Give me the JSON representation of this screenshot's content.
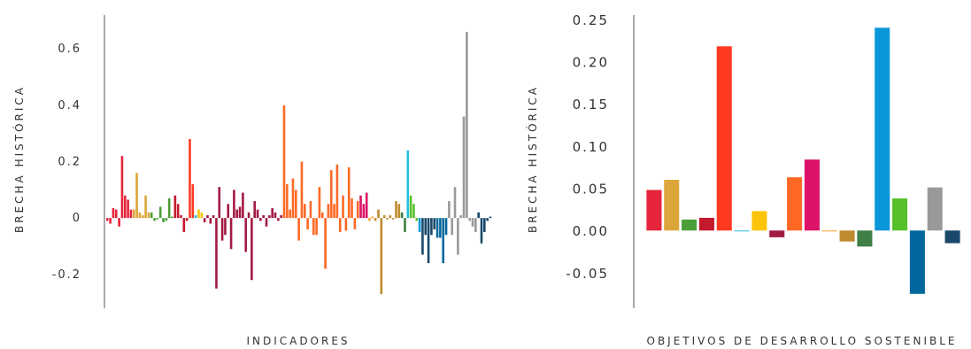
{
  "chart_data": [
    {
      "type": "bar",
      "xlabel": "INDICADORES",
      "ylabel": "BRECHA HISTÓRICA",
      "ylim": [
        -0.32,
        0.72
      ],
      "yticks": [
        -0.2,
        0,
        0.2,
        0.4,
        0.6
      ],
      "ytick_labels": [
        "-0.2",
        "0",
        "0.2",
        "0.4",
        "0.6"
      ],
      "grid": false,
      "values": [
        {
          "v": -0.01,
          "c": "#e5243b"
        },
        {
          "v": -0.02,
          "c": "#e5243b"
        },
        {
          "v": 0.035,
          "c": "#e5243b"
        },
        {
          "v": 0.03,
          "c": "#e5243b"
        },
        {
          "v": -0.03,
          "c": "#e5243b"
        },
        {
          "v": 0.22,
          "c": "#e5243b"
        },
        {
          "v": 0.08,
          "c": "#e5243b"
        },
        {
          "v": 0.065,
          "c": "#e5243b"
        },
        {
          "v": 0.03,
          "c": "#e5243b"
        },
        {
          "v": 0.03,
          "c": "#dda63a"
        },
        {
          "v": 0.16,
          "c": "#dda63a"
        },
        {
          "v": 0.02,
          "c": "#dda63a"
        },
        {
          "v": 0.01,
          "c": "#dda63a"
        },
        {
          "v": 0.08,
          "c": "#dda63a"
        },
        {
          "v": 0.02,
          "c": "#dda63a"
        },
        {
          "v": 0.02,
          "c": "#4c9f38"
        },
        {
          "v": -0.01,
          "c": "#4c9f38"
        },
        {
          "v": -0.005,
          "c": "#4c9f38"
        },
        {
          "v": 0.04,
          "c": "#4c9f38"
        },
        {
          "v": -0.015,
          "c": "#4c9f38"
        },
        {
          "v": -0.01,
          "c": "#4c9f38"
        },
        {
          "v": 0.07,
          "c": "#4c9f38"
        },
        {
          "v": 0.005,
          "c": "#4c9f38"
        },
        {
          "v": 0.08,
          "c": "#c5192d"
        },
        {
          "v": 0.05,
          "c": "#c5192d"
        },
        {
          "v": 0.01,
          "c": "#c5192d"
        },
        {
          "v": -0.05,
          "c": "#c5192d"
        },
        {
          "v": -0.01,
          "c": "#c5192d"
        },
        {
          "v": 0.28,
          "c": "#ff3a21"
        },
        {
          "v": 0.12,
          "c": "#ff3a21"
        },
        {
          "v": 0.01,
          "c": "#26bde2"
        },
        {
          "v": 0.03,
          "c": "#fcc30b"
        },
        {
          "v": 0.02,
          "c": "#fcc30b"
        },
        {
          "v": -0.015,
          "c": "#a21942"
        },
        {
          "v": 0.01,
          "c": "#a21942"
        },
        {
          "v": -0.02,
          "c": "#a21942"
        },
        {
          "v": 0.01,
          "c": "#a21942"
        },
        {
          "v": -0.25,
          "c": "#a21942"
        },
        {
          "v": 0.11,
          "c": "#a21942"
        },
        {
          "v": -0.08,
          "c": "#a21942"
        },
        {
          "v": -0.06,
          "c": "#a21942"
        },
        {
          "v": 0.05,
          "c": "#a21942"
        },
        {
          "v": -0.11,
          "c": "#a21942"
        },
        {
          "v": 0.1,
          "c": "#a21942"
        },
        {
          "v": 0.03,
          "c": "#a21942"
        },
        {
          "v": 0.04,
          "c": "#a21942"
        },
        {
          "v": 0.09,
          "c": "#a21942"
        },
        {
          "v": -0.12,
          "c": "#a21942"
        },
        {
          "v": 0.02,
          "c": "#a21942"
        },
        {
          "v": -0.22,
          "c": "#a21942"
        },
        {
          "v": 0.06,
          "c": "#a21942"
        },
        {
          "v": 0.03,
          "c": "#a21942"
        },
        {
          "v": -0.01,
          "c": "#a21942"
        },
        {
          "v": 0.01,
          "c": "#a21942"
        },
        {
          "v": -0.03,
          "c": "#a21942"
        },
        {
          "v": 0.01,
          "c": "#a21942"
        },
        {
          "v": 0.035,
          "c": "#a21942"
        },
        {
          "v": 0.02,
          "c": "#a21942"
        },
        {
          "v": -0.01,
          "c": "#a21942"
        },
        {
          "v": 0.01,
          "c": "#a21942"
        },
        {
          "v": 0.4,
          "c": "#fd6925"
        },
        {
          "v": 0.12,
          "c": "#fd6925"
        },
        {
          "v": 0.03,
          "c": "#fd6925"
        },
        {
          "v": 0.14,
          "c": "#fd6925"
        },
        {
          "v": 0.1,
          "c": "#fd6925"
        },
        {
          "v": -0.08,
          "c": "#fd6925"
        },
        {
          "v": 0.2,
          "c": "#fd6925"
        },
        {
          "v": 0.05,
          "c": "#fd6925"
        },
        {
          "v": -0.04,
          "c": "#fd6925"
        },
        {
          "v": 0.06,
          "c": "#fd6925"
        },
        {
          "v": -0.06,
          "c": "#fd6925"
        },
        {
          "v": -0.06,
          "c": "#fd6925"
        },
        {
          "v": 0.11,
          "c": "#fd6925"
        },
        {
          "v": 0.02,
          "c": "#fd6925"
        },
        {
          "v": -0.18,
          "c": "#fd6925"
        },
        {
          "v": 0.05,
          "c": "#fd6925"
        },
        {
          "v": 0.17,
          "c": "#fd6925"
        },
        {
          "v": 0.05,
          "c": "#fd6925"
        },
        {
          "v": 0.19,
          "c": "#fd6925"
        },
        {
          "v": -0.05,
          "c": "#fd6925"
        },
        {
          "v": 0.08,
          "c": "#fd6925"
        },
        {
          "v": -0.045,
          "c": "#fd6925"
        },
        {
          "v": 0.18,
          "c": "#fd6925"
        },
        {
          "v": 0.07,
          "c": "#fd6925"
        },
        {
          "v": -0.04,
          "c": "#fd6925"
        },
        {
          "v": 0.06,
          "c": "#fd6925"
        },
        {
          "v": 0.08,
          "c": "#dd1367"
        },
        {
          "v": 0.05,
          "c": "#dd1367"
        },
        {
          "v": 0.09,
          "c": "#dd1367"
        },
        {
          "v": -0.01,
          "c": "#fd9d24"
        },
        {
          "v": 0.005,
          "c": "#fd9d24"
        },
        {
          "v": -0.01,
          "c": "#bf8b2e"
        },
        {
          "v": 0.03,
          "c": "#bf8b2e"
        },
        {
          "v": -0.27,
          "c": "#bf8b2e"
        },
        {
          "v": 0.01,
          "c": "#bf8b2e"
        },
        {
          "v": -0.005,
          "c": "#bf8b2e"
        },
        {
          "v": 0.01,
          "c": "#bf8b2e"
        },
        {
          "v": -0.005,
          "c": "#bf8b2e"
        },
        {
          "v": 0.06,
          "c": "#bf8b2e"
        },
        {
          "v": 0.05,
          "c": "#bf8b2e"
        },
        {
          "v": 0.02,
          "c": "#3f7e44"
        },
        {
          "v": -0.05,
          "c": "#3f7e44"
        },
        {
          "v": 0.24,
          "c": "#26bde2"
        },
        {
          "v": 0.08,
          "c": "#56c02b"
        },
        {
          "v": 0.05,
          "c": "#56c02b"
        },
        {
          "v": -0.01,
          "c": "#56c02b"
        },
        {
          "v": -0.05,
          "c": "#0a97d9"
        },
        {
          "v": -0.13,
          "c": "#19486a"
        },
        {
          "v": -0.06,
          "c": "#19486a"
        },
        {
          "v": -0.16,
          "c": "#19486a"
        },
        {
          "v": -0.06,
          "c": "#19486a"
        },
        {
          "v": -0.04,
          "c": "#19486a"
        },
        {
          "v": -0.07,
          "c": "#00689d"
        },
        {
          "v": -0.07,
          "c": "#00689d"
        },
        {
          "v": -0.16,
          "c": "#00689d"
        },
        {
          "v": -0.06,
          "c": "#00689d"
        },
        {
          "v": 0.06,
          "c": "#999999"
        },
        {
          "v": -0.06,
          "c": "#999999"
        },
        {
          "v": 0.11,
          "c": "#999999"
        },
        {
          "v": -0.13,
          "c": "#999999"
        },
        {
          "v": 0.01,
          "c": "#999999"
        },
        {
          "v": 0.36,
          "c": "#999999"
        },
        {
          "v": 0.66,
          "c": "#999999"
        },
        {
          "v": -0.01,
          "c": "#999999"
        },
        {
          "v": -0.03,
          "c": "#999999"
        },
        {
          "v": -0.05,
          "c": "#999999"
        },
        {
          "v": 0.02,
          "c": "#19486a"
        },
        {
          "v": -0.09,
          "c": "#19486a"
        },
        {
          "v": -0.05,
          "c": "#19486a"
        },
        {
          "v": -0.01,
          "c": "#19486a"
        },
        {
          "v": 0.005,
          "c": "#19486a"
        }
      ]
    },
    {
      "type": "bar",
      "xlabel": "OBJETIVOS DE DESARROLLO SOSTENIBLE",
      "ylabel": "BRECHA HISTÓRICA",
      "ylim": [
        -0.092,
        0.255
      ],
      "yticks": [
        -0.05,
        0.0,
        0.05,
        0.1,
        0.15,
        0.2,
        0.25
      ],
      "ytick_labels": [
        "-0.05",
        "0.00",
        "0.05",
        "0.10",
        "0.15",
        "0.20",
        "0.25"
      ],
      "grid": false,
      "values": [
        0.048,
        0.06,
        0.013,
        0.015,
        0.218,
        -0.001,
        0.023,
        -0.008,
        0.063,
        0.084,
        -0.001,
        -0.013,
        -0.019,
        0.24,
        0.038,
        -0.075,
        0.051,
        -0.015
      ],
      "colors": [
        "#e5243b",
        "#dda63a",
        "#4c9f38",
        "#c5192d",
        "#ff3a21",
        "#26bde2",
        "#fcc30b",
        "#a21942",
        "#fd6925",
        "#dd1367",
        "#fd9d24",
        "#bf8b2e",
        "#3f7e44",
        "#0a97d9",
        "#56c02b",
        "#00689d",
        "#999999",
        "#19486a"
      ]
    }
  ]
}
